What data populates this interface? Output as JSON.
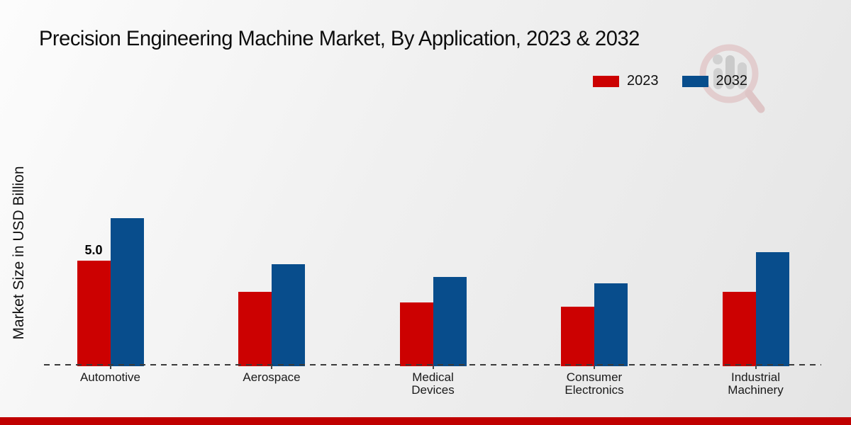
{
  "chart_data": {
    "type": "bar",
    "title": "Precision Engineering Machine Market, By Application, 2023 & 2032",
    "ylabel": "Market Size in USD Billion",
    "xlabel": "",
    "categories": [
      "Automotive",
      "Aerospace",
      "Medical Devices",
      "Consumer Electronics",
      "Industrial Machinery"
    ],
    "series": [
      {
        "name": "2023",
        "color": "#cc0101",
        "values": [
          5.0,
          3.5,
          3.0,
          2.8,
          3.5
        ],
        "data_labels": [
          "5.0",
          "",
          "",
          "",
          ""
        ]
      },
      {
        "name": "2032",
        "color": "#084d8c",
        "values": [
          7.0,
          4.8,
          4.2,
          3.9,
          5.4
        ],
        "data_labels": [
          "",
          "",
          "",
          "",
          ""
        ]
      }
    ],
    "ylim": [
      0,
      7.5
    ],
    "grid": false,
    "legend_position": "top-right",
    "baseline_style": "dashed",
    "y_axis_ticks_visible": false
  },
  "legend": {
    "items": [
      {
        "label": "2023",
        "color": "#cc0101"
      },
      {
        "label": "2032",
        "color": "#084d8c"
      }
    ]
  },
  "footer": {
    "color": "#c00000"
  },
  "watermark_name": "market-research-magnifier-logo"
}
